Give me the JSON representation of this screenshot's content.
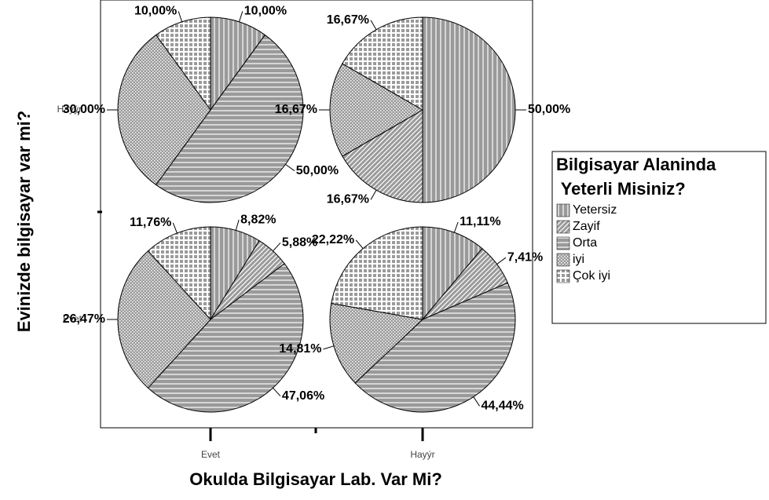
{
  "chart_data": {
    "type": "pie",
    "x_label": "Okulda Bilgisayar Lab. Var Mi?",
    "y_label": "Evinizde bilgisayar var mi?",
    "legend_title": [
      "Bilgisayar Alaninda",
      " Yeterli Misiniz?"
    ],
    "legend_position": "right",
    "categories": [
      "Yetersiz",
      "Zayif",
      "Orta",
      "iyi",
      "Çok iyi"
    ],
    "color": "#9a9a9a",
    "columns": [
      "Evet",
      "Hayýr"
    ],
    "rows": [
      {
        "label": "Hayýr",
        "pies": [
          {
            "values": [
              10,
              0,
              50,
              30,
              10
            ],
            "value_labels": [
              "10,00%",
              null,
              "50,00%",
              "30,00%",
              "10,00%"
            ]
          },
          {
            "values": [
              50,
              16.67,
              0,
              16.67,
              16.67
            ],
            "value_labels": [
              "50,00%",
              "16,67%",
              null,
              "16,67%",
              "16,67%"
            ]
          }
        ]
      },
      {
        "label": "Evet",
        "pies": [
          {
            "values": [
              8.82,
              5.88,
              47.06,
              26.47,
              11.76
            ],
            "value_labels": [
              "8,82%",
              "5,88%",
              "47,06%",
              "26,47%",
              "11,76%"
            ]
          },
          {
            "values": [
              11.11,
              7.41,
              44.44,
              14.81,
              22.22
            ],
            "value_labels": [
              "11,11%",
              "7,41%",
              "44,44%",
              "14,81%",
              "22,22%"
            ]
          }
        ]
      }
    ]
  }
}
